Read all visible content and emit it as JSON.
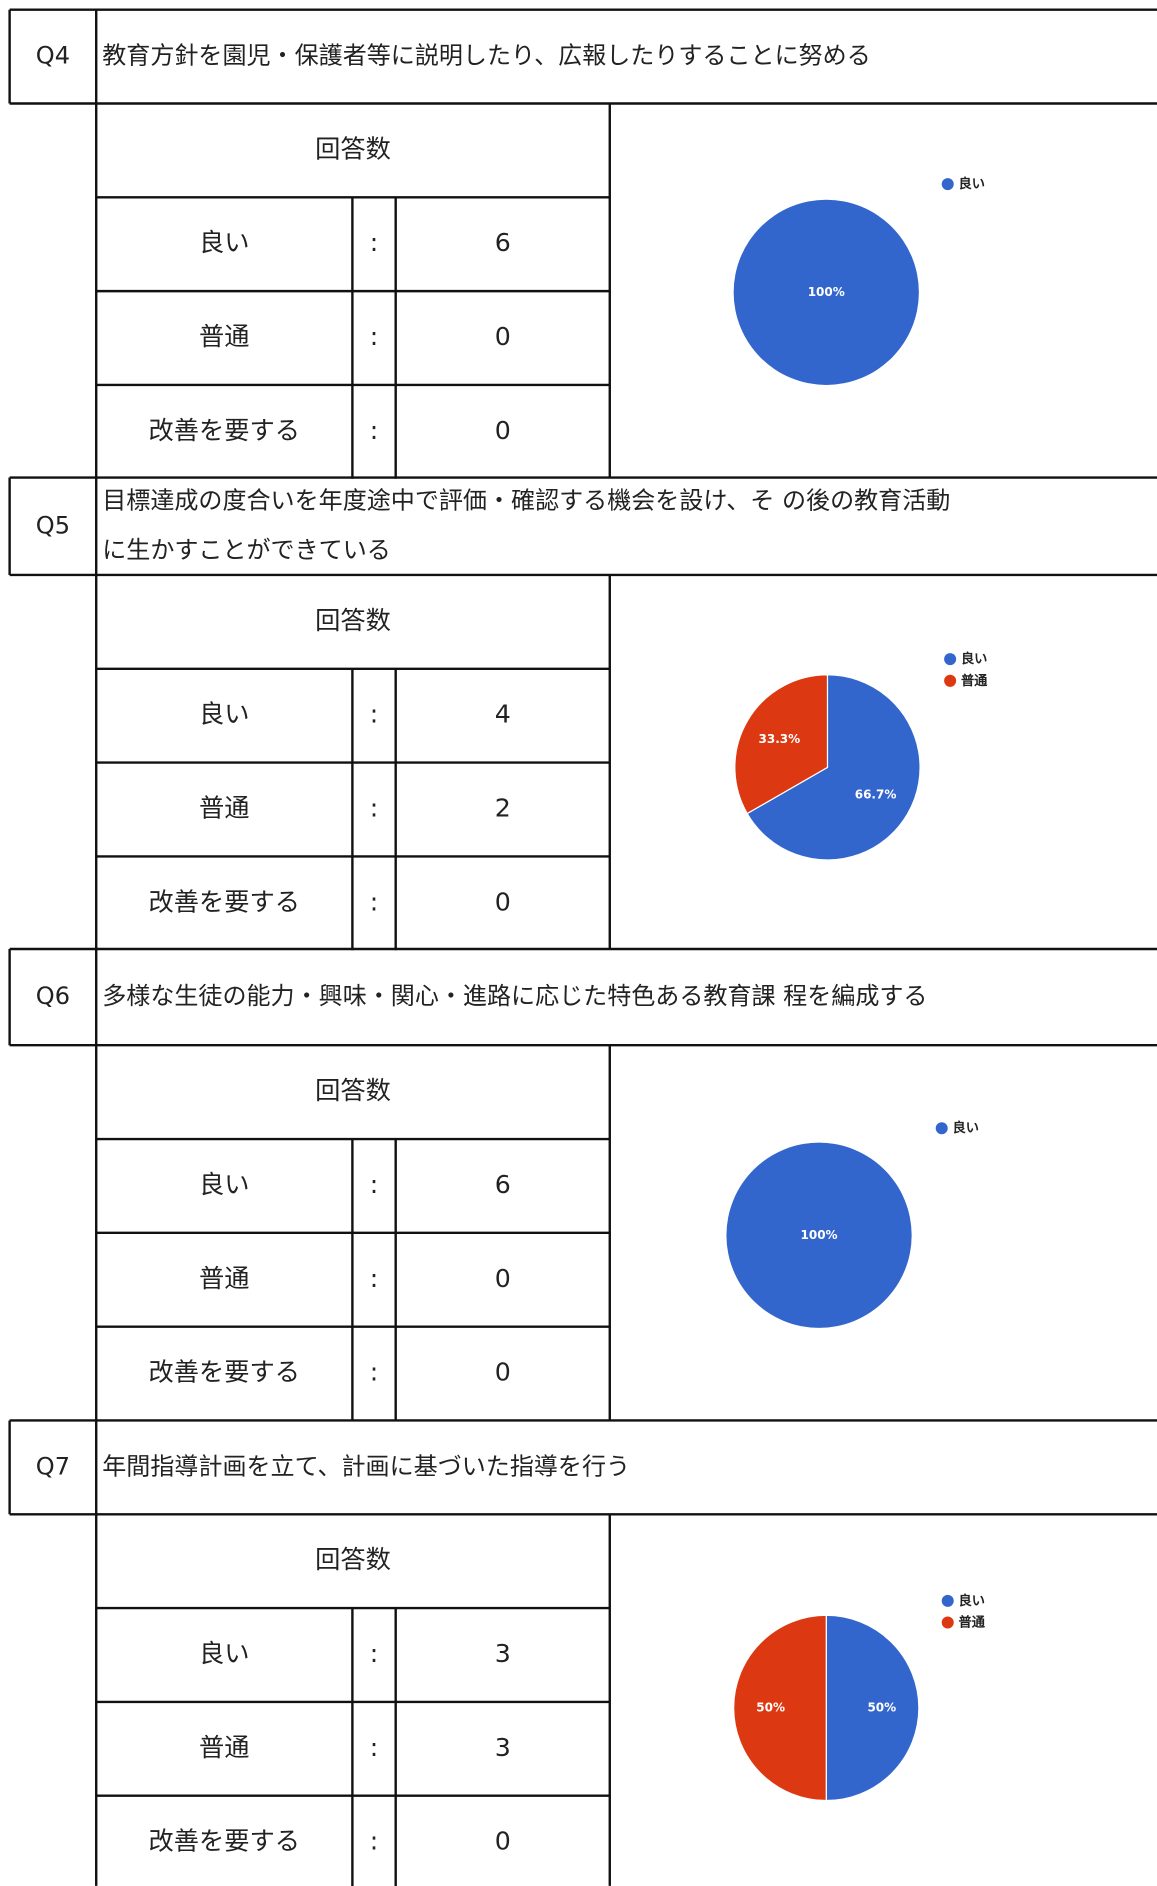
{
  "questions": [
    {
      "id": "Q4",
      "text_lines": [
        "教育方針を園児・保護者等に説明したり、広報したりすることに努める"
      ],
      "header": "回答数",
      "rows": [
        [
          "良い",
          ":",
          6
        ],
        [
          "普通",
          ":",
          0
        ],
        [
          "改善を要する",
          ":",
          0
        ]
      ],
      "chart": {
        "type": "pie",
        "categories": [
          "良い"
        ],
        "values": [
          100
        ],
        "value_labels": [
          "100%"
        ],
        "colors": [
          "#3366cc"
        ]
      }
    },
    {
      "id": "Q5",
      "text_lines": [
        "目標達成の度合いを年度途中で評価・確認する機会を設け、そ の後の教育活動",
        "に生かすことができている"
      ],
      "header": "回答数",
      "rows": [
        [
          "良い",
          ":",
          4
        ],
        [
          "普通",
          ":",
          2
        ],
        [
          "改善を要する",
          ":",
          0
        ]
      ],
      "chart": {
        "type": "pie",
        "categories": [
          "良い",
          "普通"
        ],
        "values": [
          66.7,
          33.3
        ],
        "value_labels": [
          "66.7%",
          "33.3%"
        ],
        "colors": [
          "#3366cc",
          "#dc3912"
        ]
      }
    },
    {
      "id": "Q6",
      "text_lines": [
        "多様な生徒の能力・興味・関心・進路に応じた特色ある教育課 程を編成する"
      ],
      "header": "回答数",
      "rows": [
        [
          "良い",
          ":",
          6
        ],
        [
          "普通",
          ":",
          0
        ],
        [
          "改善を要する",
          ":",
          0
        ]
      ],
      "chart": {
        "type": "pie",
        "categories": [
          "良い"
        ],
        "values": [
          100
        ],
        "value_labels": [
          "100%"
        ],
        "colors": [
          "#3366cc"
        ]
      }
    },
    {
      "id": "Q7",
      "text_lines": [
        "年間指導計画を立て、計画に基づいた指導を行う"
      ],
      "header": "回答数",
      "rows": [
        [
          "良い",
          ":",
          3
        ],
        [
          "普通",
          ":",
          3
        ],
        [
          "改善を要する",
          ":",
          0
        ]
      ],
      "chart": {
        "type": "pie",
        "categories": [
          "良い",
          "普通"
        ],
        "values": [
          50,
          50
        ],
        "value_labels": [
          "50%",
          "50%"
        ],
        "colors": [
          "#3366cc",
          "#dc3912"
        ]
      }
    }
  ]
}
